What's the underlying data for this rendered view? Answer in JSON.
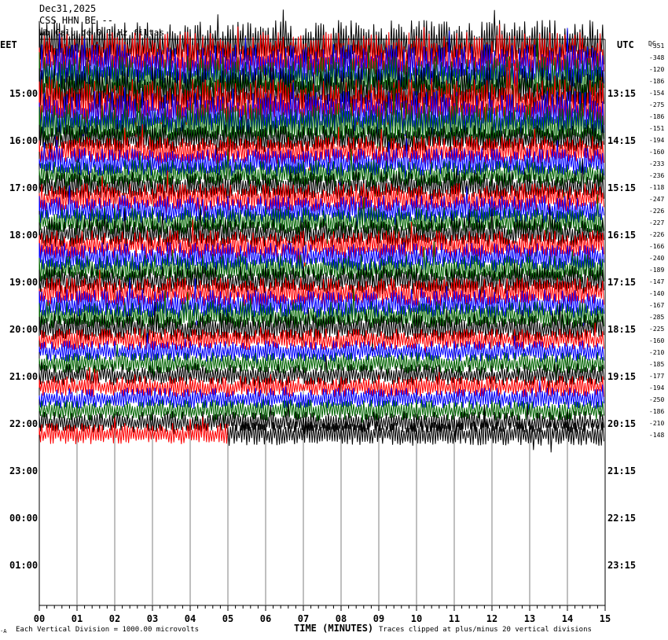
{
  "header": {
    "date": "Dec31,2025",
    "station": "CSS HHN BE --",
    "extra": "Wb Calu de 0.1 Hz filtas"
  },
  "left_tz": "EET",
  "right_tz": "UTC",
  "dc_label": "DC",
  "footer": {
    "scale_note": "Each Vertical Division = 1000.00 microvolts",
    "xlabel": "TIME (MINUTES)",
    "clip_note": "Traces clipped at plus/minus 20 vertical divisions",
    "corner_mark": "·A"
  },
  "colors": {
    "trace_cycle": [
      "#000000",
      "#ff0000",
      "#0000ff",
      "#006400"
    ],
    "grid": "#7f7f7f",
    "text": "#000000"
  },
  "chart_data": {
    "type": "line",
    "title": "",
    "xlabel": "TIME (MINUTES)",
    "xlim": [
      0,
      15
    ],
    "x_ticks": [
      "00",
      "01",
      "02",
      "03",
      "04",
      "05",
      "06",
      "07",
      "08",
      "09",
      "10",
      "11",
      "12",
      "13",
      "14",
      "15"
    ],
    "left_hour_labels": [
      "15:00",
      "16:00",
      "17:00",
      "18:00",
      "19:00",
      "20:00",
      "21:00",
      "22:00",
      "23:00",
      "00:00",
      "01:00"
    ],
    "right_hour_labels": [
      "13:15",
      "14:15",
      "15:15",
      "16:15",
      "17:15",
      "18:15",
      "19:15",
      "20:15",
      "21:15",
      "22:15",
      "23:15"
    ],
    "row_offsets": [
      -351,
      -348,
      -120,
      -186,
      -154,
      -275,
      -186,
      -151,
      -194,
      -160,
      -233,
      -236,
      -118,
      -247,
      -226,
      -227,
      -226,
      -166,
      -240,
      -189,
      -147,
      -140,
      -167,
      -285,
      -225,
      -160,
      -210,
      -185,
      -177,
      -194,
      -250,
      -186,
      -210,
      -148
    ],
    "traces_full": 33,
    "last_trace_end_minute": 5,
    "clip_divisions": 20
  }
}
